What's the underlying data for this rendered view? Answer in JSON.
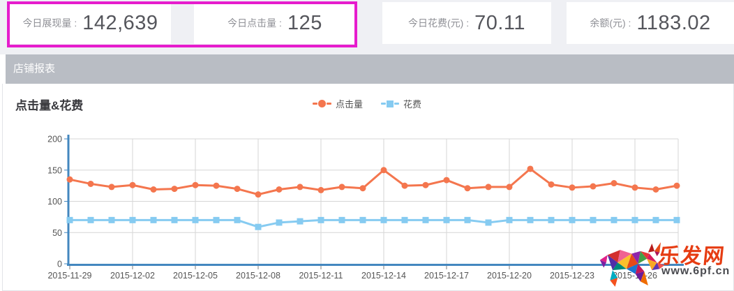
{
  "stats": {
    "highlight_color": "#e61ccd",
    "cards": [
      {
        "label": "今日展现量 :",
        "value": "142,639"
      },
      {
        "label": "今日点击量 :",
        "value": "125"
      },
      {
        "label": "今日花费(元) :",
        "value": "70.11"
      },
      {
        "label": "余额(元) :",
        "value": "1183.02"
      }
    ]
  },
  "section_header": {
    "title": "店铺报表"
  },
  "chart": {
    "legend": [
      {
        "label": "点击量",
        "color": "#f4764e",
        "marker": "circle"
      },
      {
        "label": "花费",
        "color": "#86cbf1",
        "marker": "square"
      }
    ]
  },
  "chart_data": {
    "type": "line",
    "title": "点击量&花费",
    "x": [
      "2015-11-29",
      "2015-11-30",
      "2015-12-01",
      "2015-12-02",
      "2015-12-03",
      "2015-12-04",
      "2015-12-05",
      "2015-12-06",
      "2015-12-07",
      "2015-12-08",
      "2015-12-09",
      "2015-12-10",
      "2015-12-11",
      "2015-12-12",
      "2015-12-13",
      "2015-12-14",
      "2015-12-15",
      "2015-12-16",
      "2015-12-17",
      "2015-12-18",
      "2015-12-19",
      "2015-12-20",
      "2015-12-21",
      "2015-12-22",
      "2015-12-23",
      "2015-12-24",
      "2015-12-25",
      "2015-12-26",
      "2015-12-27",
      "2015-12-28"
    ],
    "series": [
      {
        "name": "点击量",
        "color": "#f4764e",
        "marker": "circle",
        "values": [
          135,
          128,
          123,
          126,
          119,
          120,
          126,
          125,
          120,
          111,
          119,
          123,
          118,
          123,
          121,
          150,
          125,
          126,
          134,
          121,
          123,
          123,
          152,
          127,
          122,
          124,
          129,
          122,
          119,
          125
        ]
      },
      {
        "name": "花费",
        "color": "#86cbf1",
        "marker": "square",
        "values": [
          70,
          70,
          70,
          70,
          70,
          70,
          70,
          70,
          70,
          59,
          66,
          68,
          70,
          70,
          70,
          70,
          70,
          70,
          70,
          70,
          66,
          70,
          70,
          70,
          70,
          70,
          70,
          70,
          70,
          70
        ]
      }
    ],
    "ylim": [
      0,
      200
    ],
    "yticks": [
      0,
      50,
      100,
      150,
      200
    ],
    "xtick_labels": [
      "2015-11-29",
      "2015-12-02",
      "2015-12-05",
      "2015-12-08",
      "2015-12-11",
      "2015-12-14",
      "2015-12-17",
      "2015-12-20",
      "2015-12-23",
      "2015-12-26"
    ],
    "grid": true,
    "legend_position": "top-center",
    "axis_color": "#4387bf",
    "grid_color": "#d6d6d6"
  },
  "watermark": {
    "site_name": "乐发网",
    "site_url": "www.6pf.cn"
  }
}
